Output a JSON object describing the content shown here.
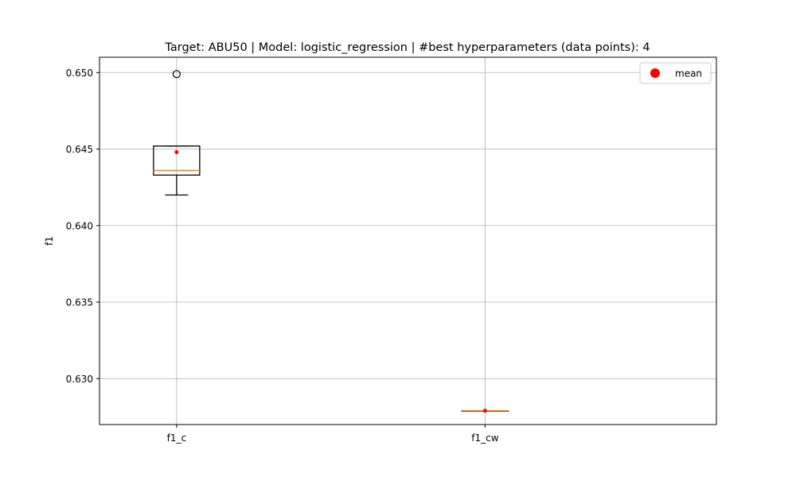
{
  "chart_data": {
    "type": "box",
    "title": "Target: ABU50 | Model: logistic_regression | #best hyperparameters (data points): 4",
    "xlabel": "",
    "ylabel": "f1",
    "categories": [
      "f1_c",
      "f1_cw"
    ],
    "ylim": [
      0.627,
      0.651
    ],
    "yticks": [
      0.63,
      0.635,
      0.64,
      0.645,
      0.65
    ],
    "ytick_labels": [
      "0.630",
      "0.635",
      "0.640",
      "0.645",
      "0.650"
    ],
    "grid": true,
    "legend": {
      "placement": "top-right",
      "entries": [
        {
          "label": "mean",
          "color": "#ff0000"
        }
      ]
    },
    "boxes": [
      {
        "category": "f1_c",
        "whisker_low": 0.642,
        "q1": 0.6433,
        "median": 0.6436,
        "q3": 0.6452,
        "whisker_high": 0.6452,
        "mean": 0.6448,
        "outliers": [
          0.6499
        ]
      },
      {
        "category": "f1_cw",
        "whisker_low": 0.6279,
        "q1": 0.6279,
        "median": 0.6279,
        "q3": 0.6279,
        "whisker_high": 0.6279,
        "mean": 0.6279,
        "outliers": []
      }
    ],
    "colors": {
      "box": "#000000",
      "median": "#ff7f0e",
      "mean": "#ff0000",
      "grid": "#b0b0b0"
    }
  }
}
